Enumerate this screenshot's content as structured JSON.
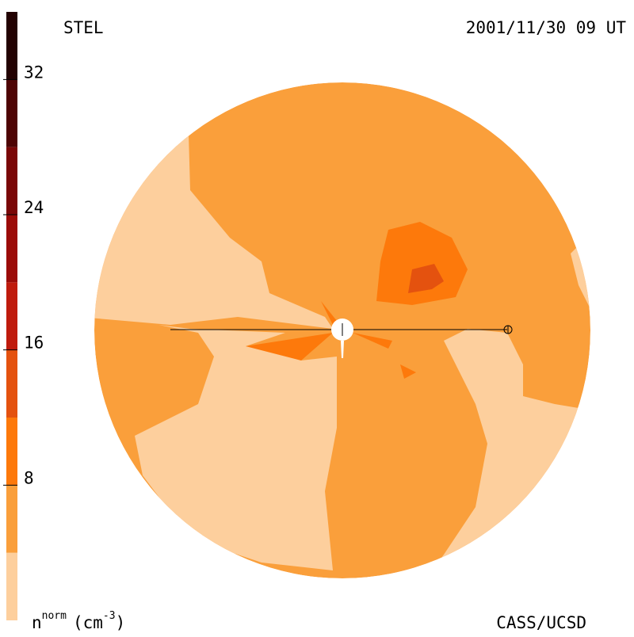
{
  "chart_data": {
    "type": "colormap",
    "title": "STEL",
    "subtitle": "2001/11/30 09 UT",
    "credit": "CASS/UCSD",
    "colorbar_label": {
      "base": "n",
      "sup": "norm",
      "unit": "(cm",
      "unit_sup": "-3",
      "close": ")"
    },
    "levels": [
      0,
      4,
      8,
      12,
      16,
      20,
      24,
      28,
      32,
      36
    ],
    "colors": [
      "#fdcf9d",
      "#fa9f3b",
      "#fd790b",
      "#e4520f",
      "#bf1b0d",
      "#9b0c08",
      "#7a0707",
      "#4e0404",
      "#230202"
    ],
    "ylim": [
      0,
      36
    ],
    "yticks": [
      8,
      16,
      24,
      32
    ]
  }
}
